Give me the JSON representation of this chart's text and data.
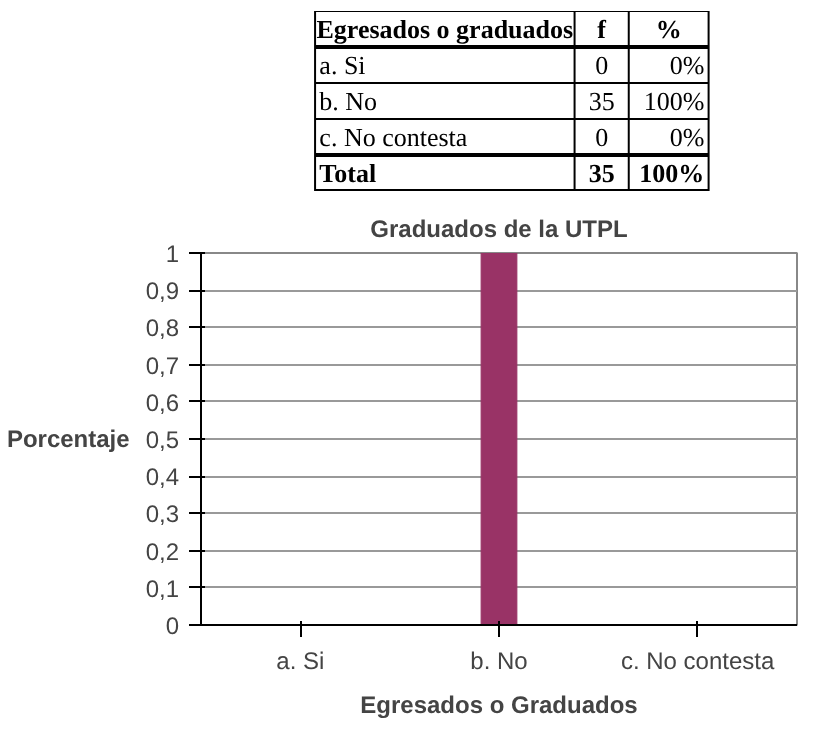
{
  "chart_data": [
    {
      "type": "other",
      "annotations": [
        "Egresados o graduados",
        "f",
        "%",
        "a. Si",
        "0",
        "0%",
        "b. No",
        "35",
        "100%",
        "c. No contesta",
        "0",
        "0%",
        "Total",
        "35",
        "100%"
      ]
    },
    {
      "type": "bar",
      "title": "Graduados de la UTPL",
      "xlabel": "Egresados o Graduados",
      "ylabel": "Porcentaje",
      "categories": [
        "a. Si",
        "b. No",
        "c. No contesta"
      ],
      "values": [
        0,
        1,
        0
      ],
      "color": "#993366",
      "ylim": [
        0,
        1
      ],
      "yticks": [
        0,
        {
          "value": 0.1,
          "label": "0,1"
        },
        {
          "value": 0.2,
          "label": "0,2"
        },
        {
          "value": 0.3,
          "label": "0,3"
        },
        {
          "value": 0.4,
          "label": "0,4"
        },
        {
          "value": 0.5,
          "label": "0,5"
        },
        {
          "value": 0.6,
          "label": "0,6"
        },
        {
          "value": 0.7,
          "label": "0,7"
        },
        {
          "value": 0.8,
          "label": "0,8"
        },
        {
          "value": 0.9,
          "label": "0,9"
        },
        1
      ],
      "grid": "y"
    }
  ]
}
